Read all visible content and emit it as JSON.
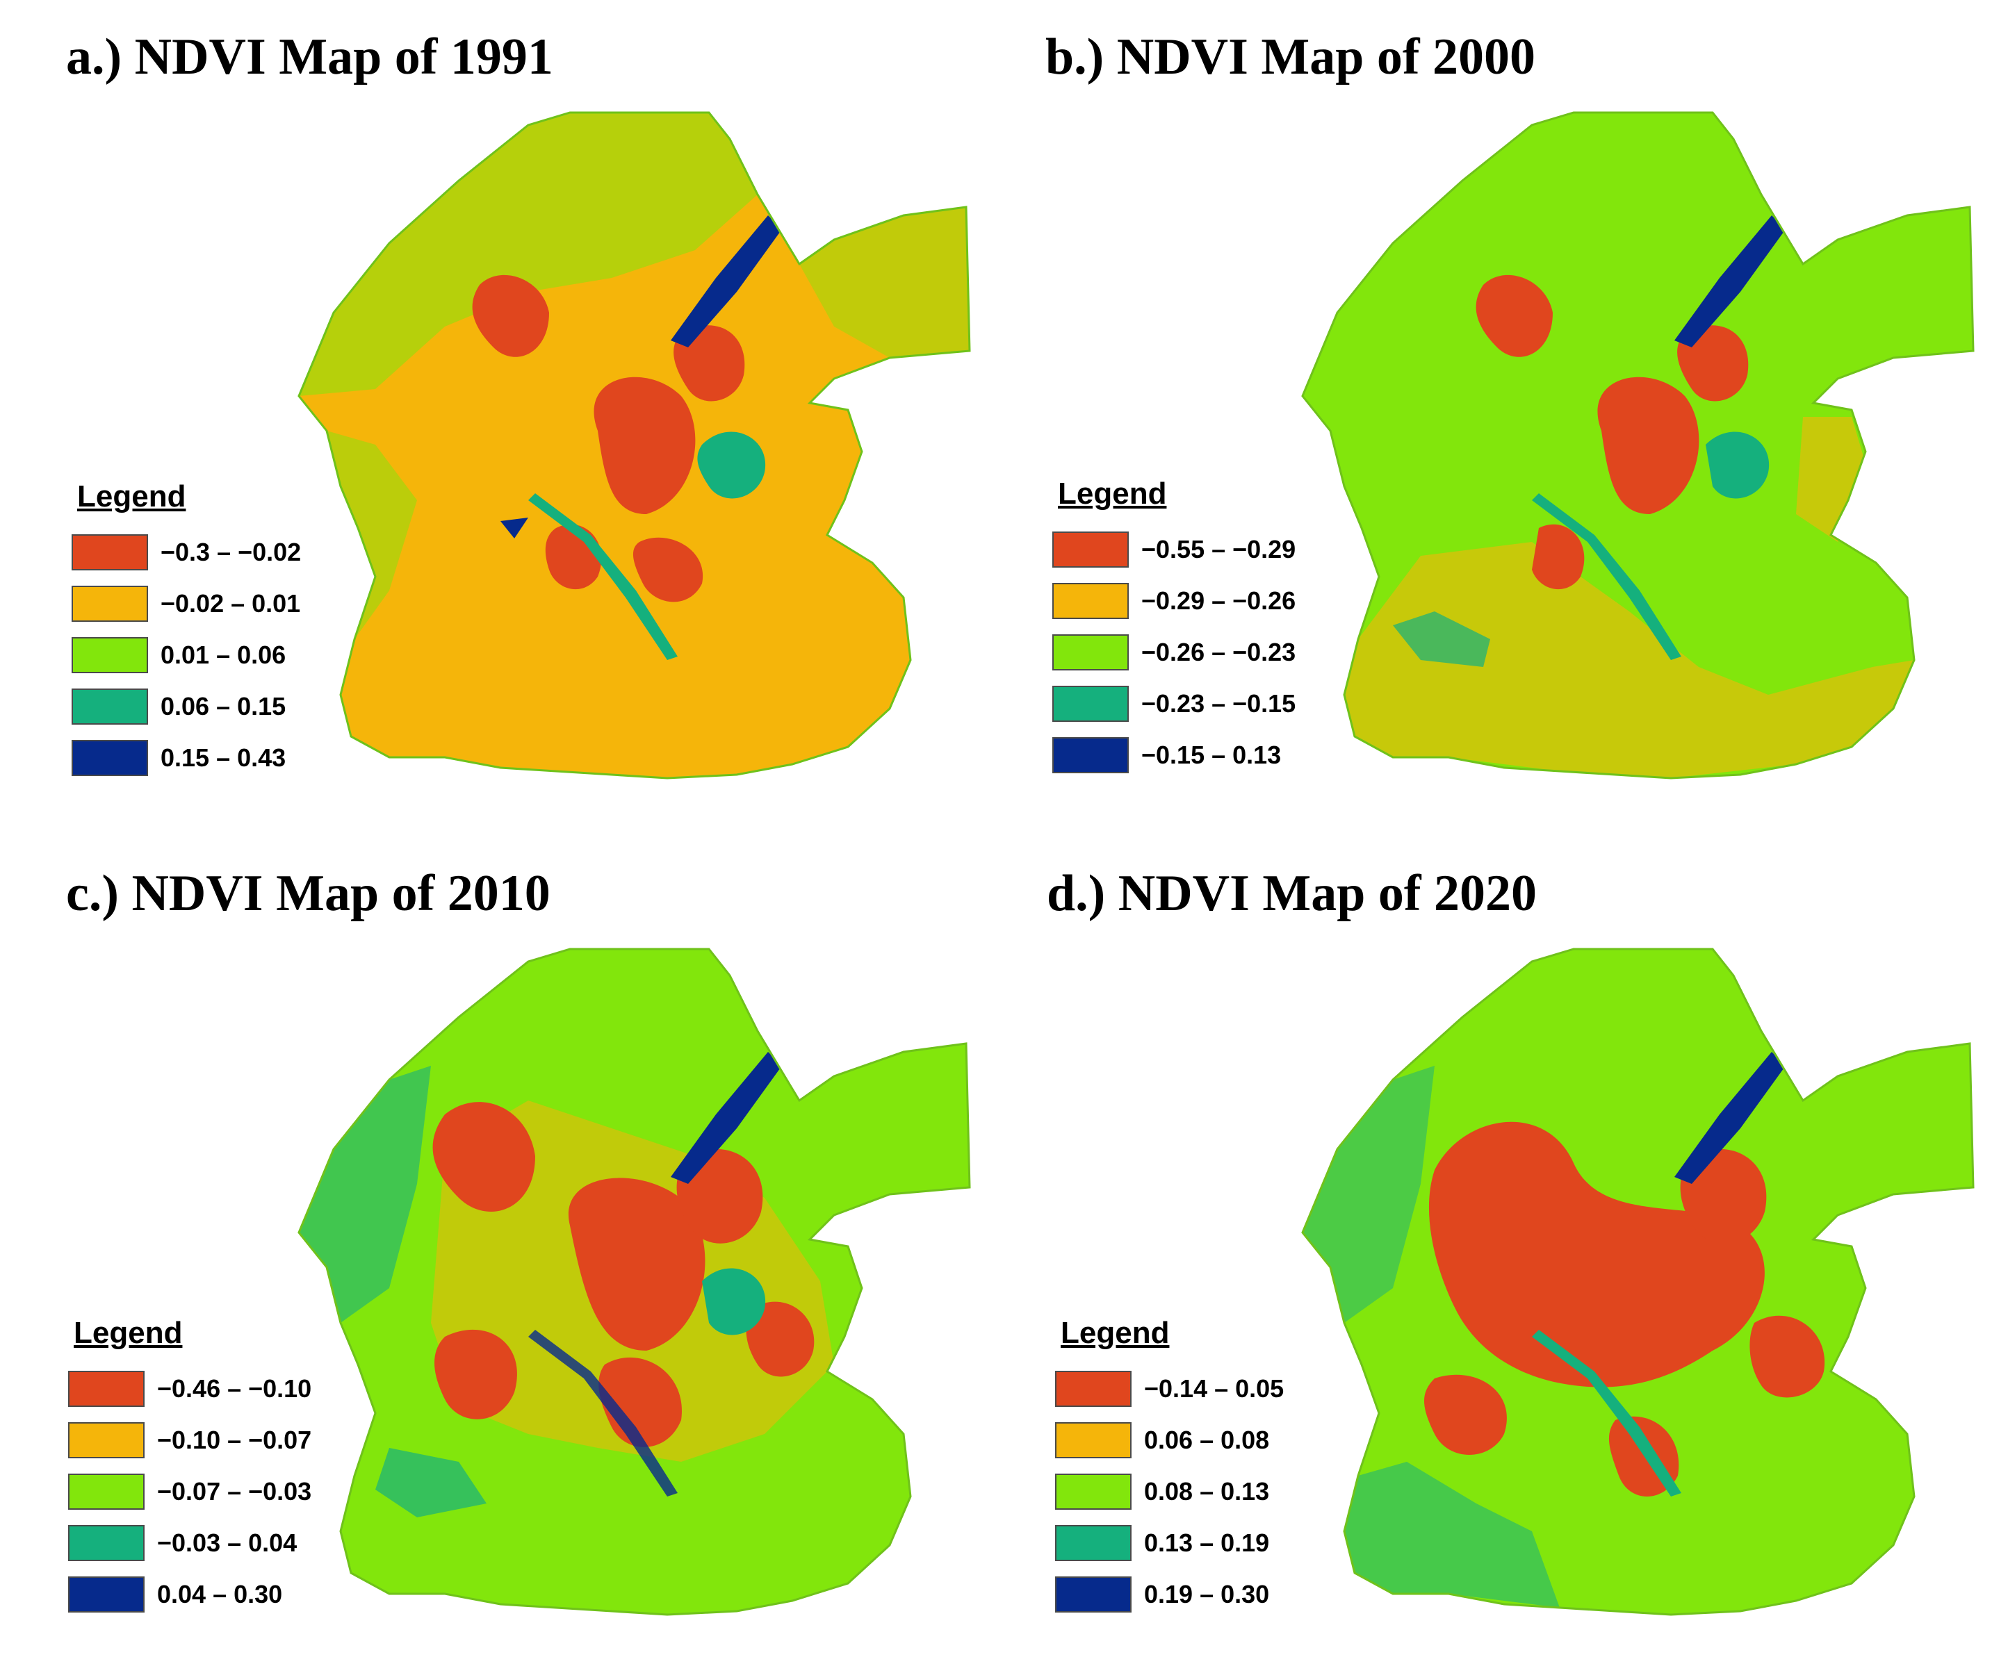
{
  "colors": {
    "c1": "#e0461e",
    "c2": "#f5b50a",
    "c3": "#82e60c",
    "c4": "#15b07d",
    "c5": "#062a8c"
  },
  "panels": [
    {
      "title": "a.) NDVI Map of 1991",
      "legend_title": "Legend",
      "classes": [
        "−0.3 – −0.02",
        "−0.02 – 0.01",
        "0.01 – 0.06",
        "0.06 – 0.15",
        "0.15 – 0.43"
      ]
    },
    {
      "title": "b.) NDVI Map of 2000",
      "legend_title": "Legend",
      "classes": [
        "−0.55 – −0.29",
        "−0.29 – −0.26",
        "−0.26 – −0.23",
        "−0.23 – −0.15",
        "−0.15 – 0.13"
      ]
    },
    {
      "title": "c.) NDVI Map of 2010",
      "legend_title": "Legend",
      "classes": [
        "−0.46 – −0.10",
        "−0.10 – −0.07",
        "−0.07 – −0.03",
        "−0.03 – 0.04",
        "0.04 – 0.30"
      ]
    },
    {
      "title": "d.) NDVI Map of 2020",
      "legend_title": "Legend",
      "classes": [
        "−0.14 – 0.05",
        "0.06 – 0.08",
        "0.08 – 0.13",
        "0.13 – 0.19",
        "0.19 – 0.30"
      ]
    }
  ]
}
